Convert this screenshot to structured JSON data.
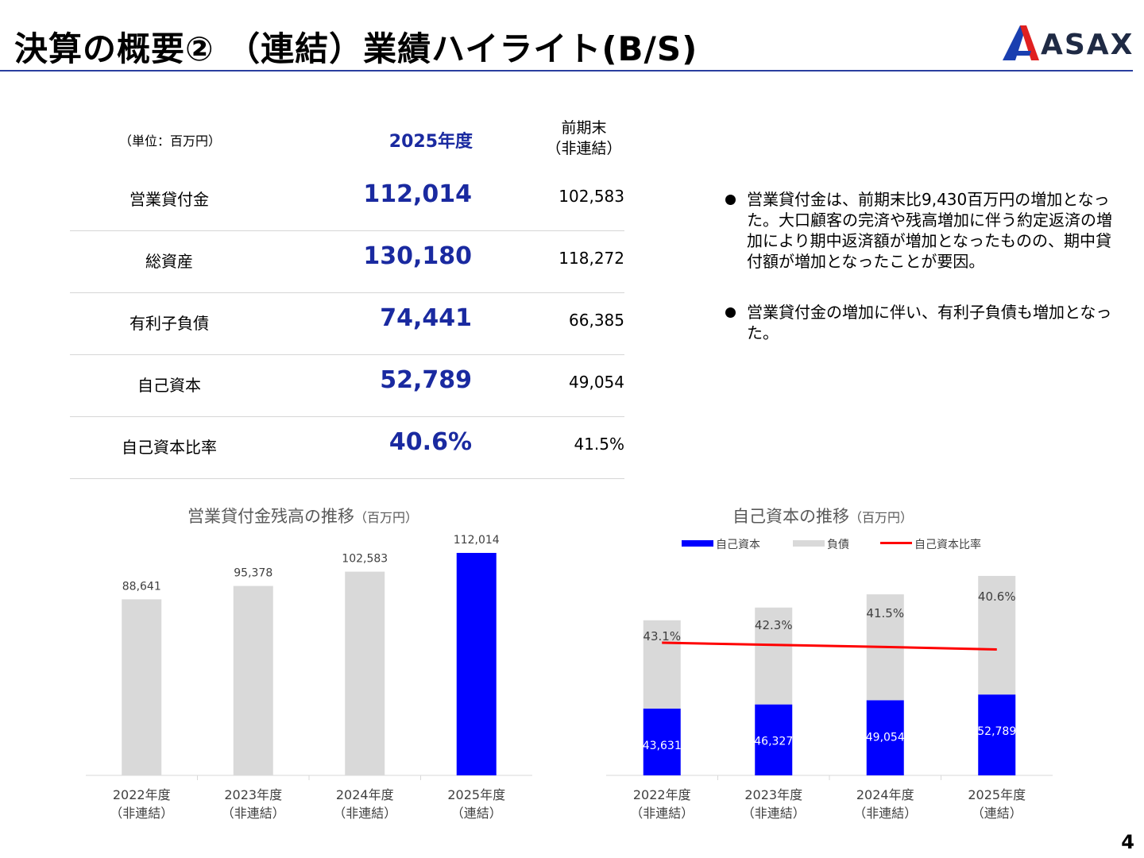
{
  "header": {
    "title": "決算の概要② （連結）業績ハイライト(B/S)",
    "logo_text": "ASAX"
  },
  "table": {
    "unit_label": "（単位：百万円）",
    "col_current": "2025年度",
    "col_prev_line1": "前期末",
    "col_prev_line2": "（非連結）",
    "rows": [
      {
        "label": "営業貸付金",
        "current": "112,014",
        "prev": "102,583"
      },
      {
        "label": "総資産",
        "current": "130,180",
        "prev": "118,272"
      },
      {
        "label": "有利子負債",
        "current": "74,441",
        "prev": "66,385"
      },
      {
        "label": "自己資本",
        "current": "52,789",
        "prev": "49,054"
      },
      {
        "label": "自己資本比率",
        "current": "40.6%",
        "prev": "41.5%"
      }
    ]
  },
  "bullets": [
    "営業貸付金は、前期末比9,430百万円の増加となった。大口顧客の完済や残高増加に伴う約定返済の増加により期中返済額が増加となったものの、期中貸付額が増加となったことが要因。",
    "営業貸付金の増加に伴い、有利子負債も増加となった。"
  ],
  "chart1": {
    "title": "営業貸付金残高の推移",
    "unit": "（百万円）"
  },
  "chart2": {
    "title": "自己資本の推移",
    "unit": "（百万円）",
    "legend": [
      "自己資本",
      "負債",
      "自己資本比率"
    ]
  },
  "colors": {
    "brand_blue": "#1a2aa0",
    "bar_gray": "#d9d9d9",
    "bar_blue": "#0000ff",
    "ratio_line": "#ff0000"
  },
  "chart_data": [
    {
      "type": "bar",
      "title": "営業貸付金残高の推移",
      "categories": [
        "2022年度\n（非連結）",
        "2023年度\n（非連結）",
        "2024年度\n（非連結）",
        "2025年度\n（連結）"
      ],
      "category_lines": [
        [
          "2022年度",
          "（非連結）"
        ],
        [
          "2023年度",
          "（非連結）"
        ],
        [
          "2024年度",
          "（非連結）"
        ],
        [
          "2025年度",
          "（連結）"
        ]
      ],
      "values": [
        88641,
        95378,
        102583,
        112014
      ],
      "value_labels": [
        "88,641",
        "95,378",
        "102,583",
        "112,014"
      ],
      "bar_colors": [
        "#d9d9d9",
        "#d9d9d9",
        "#d9d9d9",
        "#0000ff"
      ],
      "ylim": [
        0,
        120000
      ],
      "grid": false
    },
    {
      "type": "bar",
      "stacked": true,
      "title": "自己資本の推移",
      "categories": [
        "2022年度\n（非連結）",
        "2023年度\n（非連結）",
        "2024年度\n（非連結）",
        "2025年度\n（連結）"
      ],
      "category_lines": [
        [
          "2022年度",
          "（非連結）"
        ],
        [
          "2023年度",
          "（非連結）"
        ],
        [
          "2024年度",
          "（非連結）"
        ],
        [
          "2025年度",
          "（連結）"
        ]
      ],
      "series": [
        {
          "name": "自己資本",
          "values": [
            43631,
            46327,
            49054,
            52789
          ],
          "labels": [
            "43,631",
            "46,327",
            "49,054",
            "52,789"
          ],
          "color": "#0000ff"
        },
        {
          "name": "負債",
          "values": [
            57600,
            63200,
            69100,
            77400
          ],
          "color": "#d9d9d9"
        }
      ],
      "ratio": {
        "name": "自己資本比率",
        "values": [
          43.1,
          42.3,
          41.5,
          40.6
        ],
        "labels": [
          "43.1%",
          "42.3%",
          "41.5%",
          "40.6%"
        ],
        "color": "#ff0000"
      },
      "legend_position": "top",
      "ylim": [
        0,
        140000
      ],
      "grid": false
    }
  ],
  "page_number": "4"
}
